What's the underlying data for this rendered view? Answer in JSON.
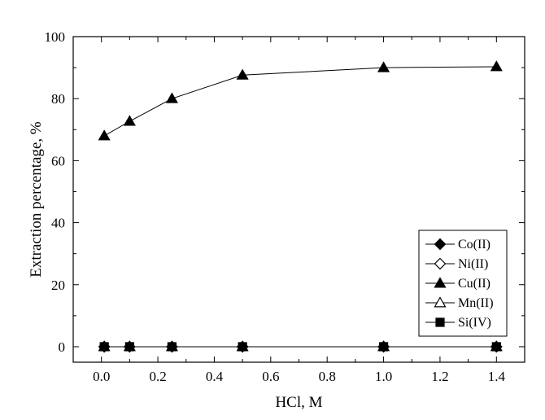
{
  "chart_data": {
    "type": "line",
    "xlabel": "HCl, M",
    "ylabel": "Extraction percentage, %",
    "xlim": [
      -0.1,
      1.5
    ],
    "ylim": [
      -5,
      100
    ],
    "xticks": [
      0.0,
      0.2,
      0.4,
      0.6,
      0.8,
      1.0,
      1.2,
      1.4
    ],
    "xtick_labels": [
      "0.0",
      "0.2",
      "0.4",
      "0.6",
      "0.8",
      "1.0",
      "1.2",
      "1.4"
    ],
    "yticks": [
      0,
      20,
      40,
      60,
      80,
      100
    ],
    "ytick_labels": [
      "0",
      "20",
      "40",
      "60",
      "80",
      "100"
    ],
    "x": [
      0.01,
      0.1,
      0.25,
      0.5,
      1.0,
      1.4
    ],
    "legend_position": "bottom-right",
    "grid": false,
    "series": [
      {
        "name": "Co(II)",
        "marker": "diamond-filled",
        "values": [
          0,
          0,
          0,
          0,
          0,
          0
        ]
      },
      {
        "name": "Ni(II)",
        "marker": "diamond-open",
        "values": [
          0,
          0,
          0,
          0,
          0,
          0
        ]
      },
      {
        "name": "Cu(II)",
        "marker": "triangle-filled",
        "values": [
          68,
          72.7,
          80,
          87.6,
          90,
          90.3
        ]
      },
      {
        "name": "Mn(II)",
        "marker": "triangle-open",
        "values": [
          0,
          0,
          0,
          0,
          0,
          0
        ]
      },
      {
        "name": "Si(IV)",
        "marker": "square-filled",
        "values": [
          0,
          0,
          0,
          0,
          0,
          0
        ]
      }
    ]
  }
}
